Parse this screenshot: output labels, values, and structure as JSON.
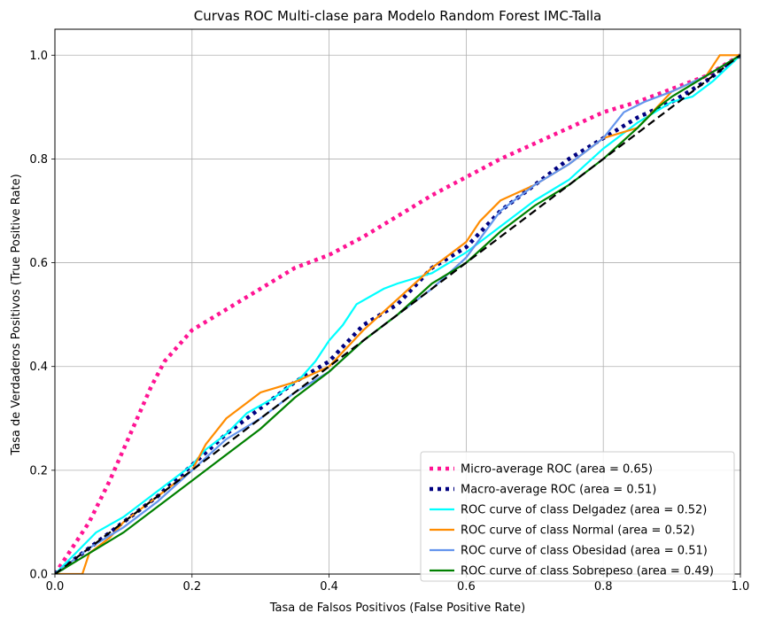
{
  "chart_data": {
    "type": "line",
    "title": "Curvas ROC Multi-clase para Modelo Random Forest IMC-Talla",
    "xlabel": "Tasa de Falsos Positivos (False Positive Rate)",
    "ylabel": "Tasa de Verdaderos Positivos (True Positive Rate)",
    "xlim": [
      0.0,
      1.0
    ],
    "ylim": [
      0.0,
      1.05
    ],
    "xticks": [
      "0.0",
      "0.2",
      "0.4",
      "0.6",
      "0.8",
      "1.0"
    ],
    "yticks": [
      "0.0",
      "0.2",
      "0.4",
      "0.6",
      "0.8",
      "1.0"
    ],
    "grid": true,
    "legend_position": "lower-right",
    "diagonal": {
      "color": "#000000",
      "dash": "dashed"
    },
    "series": [
      {
        "name": "Micro-average ROC (area = 0.65)",
        "color": "#ff1493",
        "style": "dotted-thick",
        "x": [
          0,
          0.02,
          0.05,
          0.08,
          0.1,
          0.12,
          0.14,
          0.16,
          0.18,
          0.2,
          0.25,
          0.3,
          0.35,
          0.4,
          0.45,
          0.5,
          0.55,
          0.6,
          0.65,
          0.7,
          0.75,
          0.8,
          0.85,
          0.9,
          0.95,
          1.0
        ],
        "y": [
          0,
          0.04,
          0.1,
          0.18,
          0.24,
          0.3,
          0.36,
          0.41,
          0.44,
          0.47,
          0.51,
          0.55,
          0.59,
          0.615,
          0.65,
          0.69,
          0.73,
          0.765,
          0.8,
          0.83,
          0.86,
          0.89,
          0.91,
          0.935,
          0.96,
          1.0
        ]
      },
      {
        "name": "Macro-average ROC (area = 0.51)",
        "color": "#000080",
        "style": "dotted-thick",
        "x": [
          0,
          0.05,
          0.1,
          0.15,
          0.2,
          0.25,
          0.3,
          0.35,
          0.4,
          0.45,
          0.5,
          0.55,
          0.6,
          0.65,
          0.7,
          0.75,
          0.8,
          0.85,
          0.9,
          0.95,
          1.0
        ],
        "y": [
          0,
          0.05,
          0.1,
          0.15,
          0.21,
          0.27,
          0.32,
          0.37,
          0.41,
          0.48,
          0.52,
          0.59,
          0.63,
          0.7,
          0.75,
          0.8,
          0.84,
          0.88,
          0.91,
          0.95,
          1.0
        ]
      },
      {
        "name": "ROC curve of class Delgadez (area = 0.52)",
        "color": "#00ffff",
        "style": "solid",
        "x": [
          0,
          0.03,
          0.06,
          0.1,
          0.15,
          0.2,
          0.22,
          0.25,
          0.28,
          0.32,
          0.36,
          0.38,
          0.4,
          0.42,
          0.44,
          0.48,
          0.5,
          0.55,
          0.6,
          0.65,
          0.7,
          0.75,
          0.8,
          0.85,
          0.9,
          0.93,
          0.96,
          1.0
        ],
        "y": [
          0,
          0.04,
          0.08,
          0.11,
          0.16,
          0.21,
          0.24,
          0.27,
          0.31,
          0.34,
          0.38,
          0.41,
          0.45,
          0.48,
          0.52,
          0.55,
          0.56,
          0.58,
          0.62,
          0.67,
          0.72,
          0.76,
          0.82,
          0.87,
          0.91,
          0.92,
          0.95,
          1.0
        ]
      },
      {
        "name": "ROC curve of class Normal (area = 0.52)",
        "color": "#ff8c00",
        "style": "solid",
        "x": [
          0,
          0.04,
          0.05,
          0.08,
          0.1,
          0.15,
          0.2,
          0.22,
          0.25,
          0.28,
          0.3,
          0.35,
          0.4,
          0.45,
          0.5,
          0.55,
          0.6,
          0.62,
          0.65,
          0.7,
          0.75,
          0.8,
          0.85,
          0.9,
          0.95,
          0.97,
          1.0
        ],
        "y": [
          0,
          0.0,
          0.04,
          0.07,
          0.1,
          0.15,
          0.2,
          0.25,
          0.3,
          0.33,
          0.35,
          0.37,
          0.4,
          0.47,
          0.53,
          0.59,
          0.64,
          0.68,
          0.72,
          0.75,
          0.79,
          0.84,
          0.86,
          0.93,
          0.96,
          1.0,
          1.0
        ]
      },
      {
        "name": "ROC curve of class Obesidad (area = 0.51)",
        "color": "#6495ed",
        "style": "solid",
        "x": [
          0,
          0.05,
          0.1,
          0.15,
          0.2,
          0.25,
          0.3,
          0.35,
          0.4,
          0.45,
          0.5,
          0.55,
          0.6,
          0.65,
          0.7,
          0.75,
          0.8,
          0.83,
          0.86,
          0.9,
          0.95,
          1.0
        ],
        "y": [
          0,
          0.05,
          0.09,
          0.14,
          0.2,
          0.26,
          0.3,
          0.35,
          0.39,
          0.45,
          0.5,
          0.55,
          0.61,
          0.7,
          0.75,
          0.79,
          0.84,
          0.89,
          0.91,
          0.93,
          0.96,
          1.0
        ]
      },
      {
        "name": "ROC curve of class Sobrepeso (area = 0.49)",
        "color": "#008000",
        "style": "solid",
        "x": [
          0,
          0.05,
          0.1,
          0.15,
          0.2,
          0.25,
          0.3,
          0.35,
          0.4,
          0.45,
          0.5,
          0.55,
          0.6,
          0.65,
          0.7,
          0.75,
          0.8,
          0.85,
          0.88,
          0.9,
          0.95,
          1.0
        ],
        "y": [
          0,
          0.04,
          0.08,
          0.13,
          0.18,
          0.23,
          0.28,
          0.34,
          0.39,
          0.45,
          0.5,
          0.56,
          0.6,
          0.66,
          0.71,
          0.75,
          0.8,
          0.86,
          0.9,
          0.92,
          0.96,
          1.0
        ]
      }
    ]
  }
}
